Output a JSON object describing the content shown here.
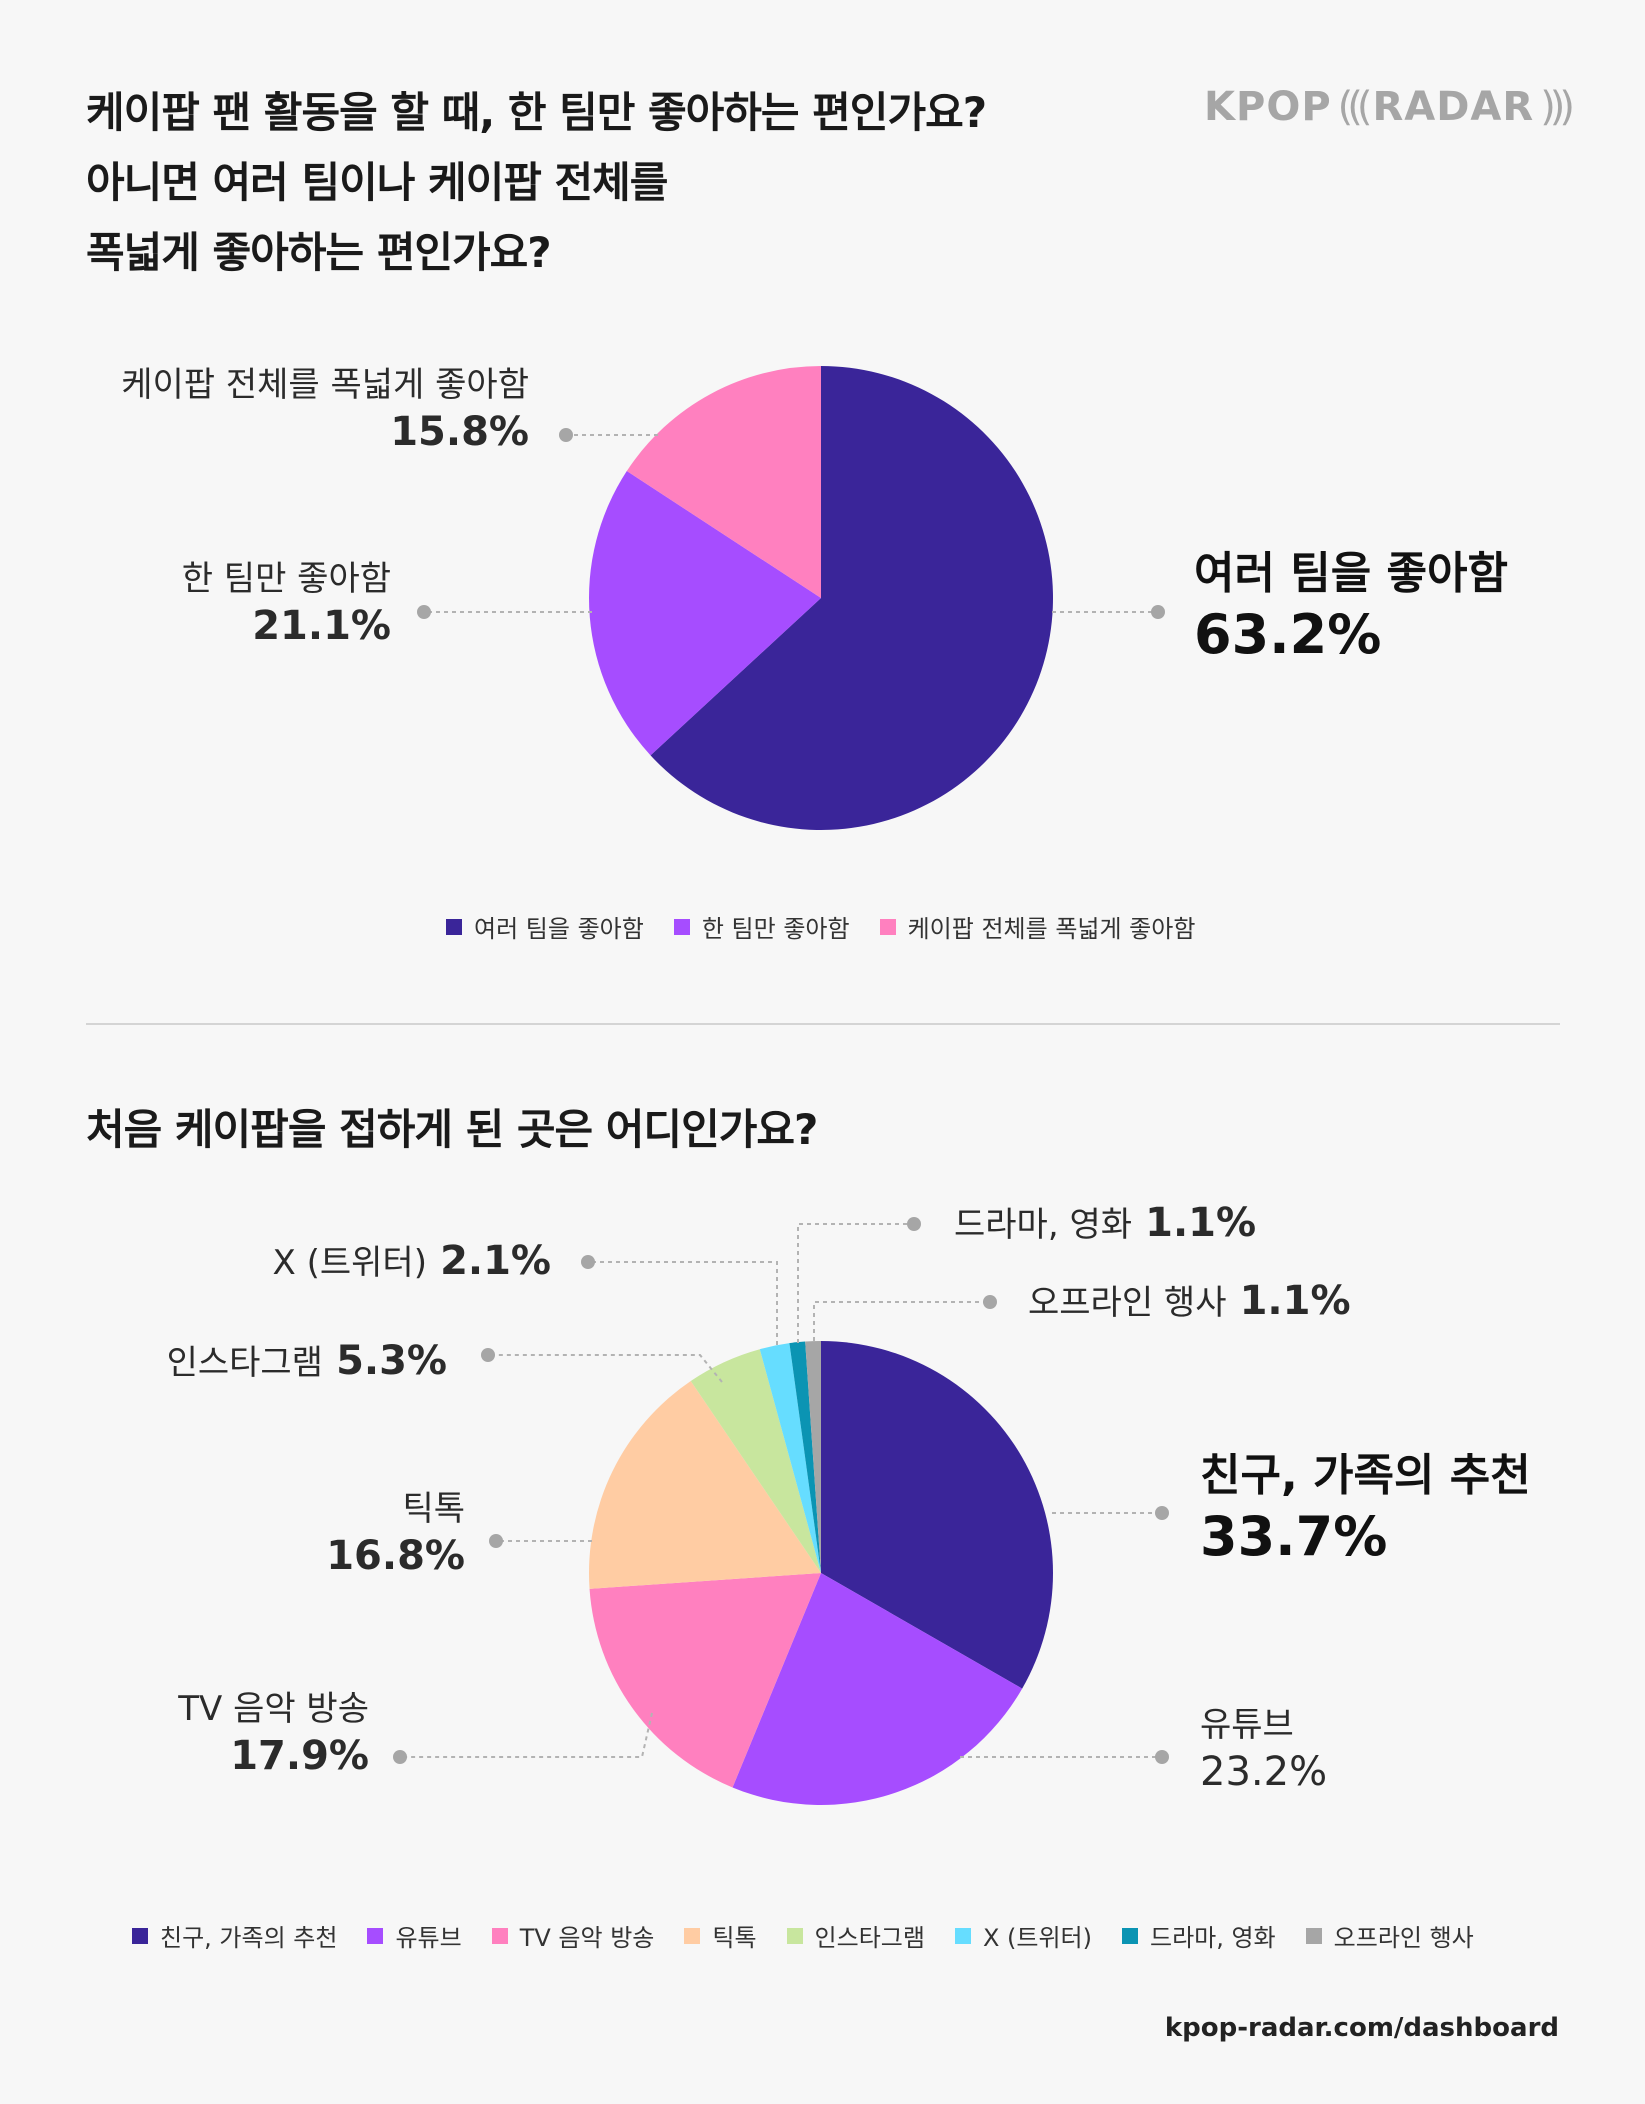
{
  "logo": {
    "left": "KPOP",
    "open": "(((",
    "right": "RADAR",
    "close": ")))"
  },
  "footer": "kpop-radar.com/dashboard",
  "chart_data": [
    {
      "type": "pie",
      "title": "케이팝 팬 활동을 할 때, 한 팀만 좋아하는 편인가요?\n아니면 여러 팀이나 케이팝 전체를\n폭넓게 좋아하는 편인가요?",
      "categories": [
        "여러 팀을 좋아함",
        "한 팀만 좋아함",
        "케이팝 전체를 폭넓게 좋아함"
      ],
      "values": [
        63.2,
        21.1,
        15.8
      ],
      "value_labels": [
        "63.2%",
        "21.1%",
        "15.8%"
      ],
      "colors": [
        "#3a2599",
        "#a64dff",
        "#ff80bf"
      ],
      "legend": "bottom-center"
    },
    {
      "type": "pie",
      "title": "처음 케이팝을 접하게 된 곳은 어디인가요?",
      "categories": [
        "친구, 가족의 추천",
        "유튜브",
        "TV 음악 방송",
        "틱톡",
        "인스타그램",
        "X (트위터)",
        "드라마, 영화",
        "오프라인 행사"
      ],
      "values": [
        33.7,
        23.2,
        17.9,
        16.8,
        5.3,
        2.1,
        1.1,
        1.1
      ],
      "value_labels": [
        "33.7%",
        "23.2%",
        "17.9%",
        "16.8%",
        "5.3%",
        "2.1%",
        "1.1%",
        "1.1%"
      ],
      "colors": [
        "#3a2599",
        "#a64dff",
        "#ff80bf",
        "#ffcca3",
        "#c8e69e",
        "#66ddff",
        "#0b94b3",
        "#a6a6a6"
      ],
      "legend": "bottom-center"
    }
  ]
}
